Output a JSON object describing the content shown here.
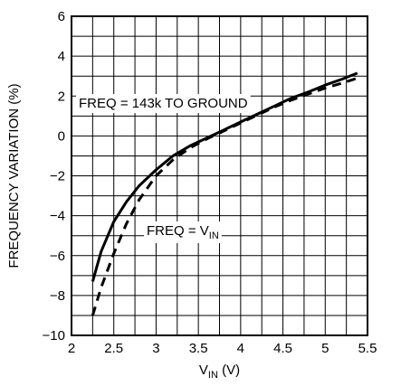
{
  "chart_data": {
    "type": "line",
    "xlabel": "VIN (V)",
    "xlabel_parts": {
      "main": "V",
      "sub": "IN",
      "suffix": " (V)"
    },
    "ylabel": "FREQUENCY VARIATION (%)",
    "xlim": [
      2,
      5.5
    ],
    "ylim": [
      -10,
      6
    ],
    "xticks": [
      2,
      2.5,
      3,
      3.5,
      4,
      4.5,
      5,
      5.5
    ],
    "xtick_labels": [
      "2",
      "2.5",
      "3",
      "3.5",
      "4",
      "4.5",
      "5",
      "5.5"
    ],
    "yticks": [
      -10,
      -8,
      -6,
      -4,
      -2,
      0,
      2,
      4,
      6
    ],
    "ytick_labels": [
      "−10",
      "−8",
      "−6",
      "−4",
      "−2",
      "0",
      "2",
      "4",
      "6"
    ],
    "grid": true,
    "series": [
      {
        "style": "solid",
        "x": [
          2.25,
          2.35,
          2.5,
          2.65,
          2.8,
          3.0,
          3.2,
          3.4,
          3.6,
          3.8,
          4.0,
          4.2,
          4.4,
          4.6,
          4.8,
          5.0,
          5.2,
          5.38
        ],
        "y": [
          -7.3,
          -5.8,
          -4.3,
          -3.3,
          -2.5,
          -1.7,
          -1.0,
          -0.5,
          -0.1,
          0.3,
          0.7,
          1.1,
          1.5,
          1.9,
          2.2,
          2.55,
          2.85,
          3.15
        ]
      },
      {
        "style": "dashed",
        "x": [
          2.25,
          2.35,
          2.5,
          2.65,
          2.8,
          3.0,
          3.2,
          3.4,
          3.6,
          3.8,
          4.0,
          4.2,
          4.4,
          4.6,
          4.8,
          5.0,
          5.2,
          5.38
        ],
        "y": [
          -9.0,
          -7.6,
          -5.9,
          -4.4,
          -3.2,
          -2.0,
          -1.2,
          -0.6,
          -0.15,
          0.25,
          0.65,
          1.05,
          1.45,
          1.8,
          2.1,
          2.4,
          2.65,
          2.9
        ]
      }
    ],
    "annotations": [
      {
        "text": "FREQ = 143k TO GROUND",
        "target_series": 0
      },
      {
        "text": "FREQ = VIN",
        "main": "FREQ = V",
        "sub": "IN",
        "target_series": 1
      }
    ]
  }
}
